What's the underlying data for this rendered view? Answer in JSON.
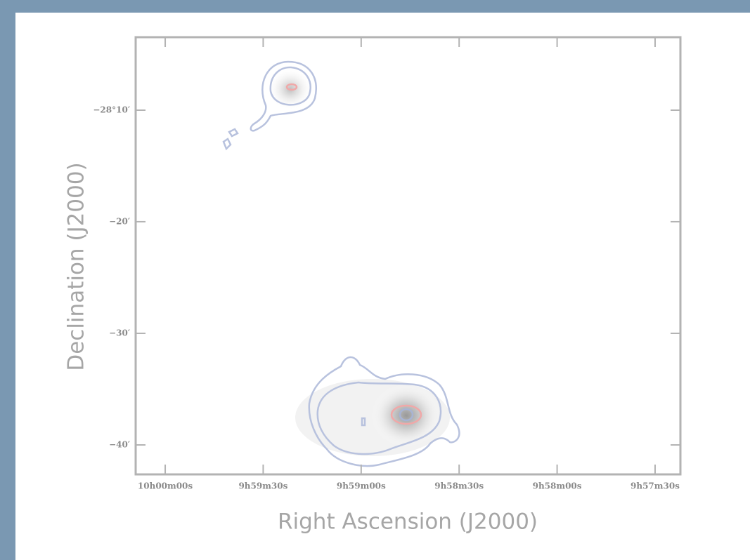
{
  "chart_data": {
    "type": "skymap",
    "xlabel": "Right Ascension (J2000)",
    "ylabel": "Declination (J2000)",
    "xlim": [
      150.0377,
      149.3427
    ],
    "ylim": [
      -28.7107,
      -28.0577
    ],
    "xticks": [
      {
        "value": 150.0,
        "label": "10h00m00s"
      },
      {
        "value": 149.875,
        "label": "9h59m30s"
      },
      {
        "value": 149.75,
        "label": "9h59m00s"
      },
      {
        "value": 149.625,
        "label": "9h58m30s"
      },
      {
        "value": 149.5,
        "label": "9h58m00s"
      },
      {
        "value": 149.375,
        "label": "9h57m30s"
      }
    ],
    "yticks": [
      {
        "value": -28.1667,
        "label": "−28°10′"
      },
      {
        "value": -28.3333,
        "label": "−20′"
      },
      {
        "value": -28.5,
        "label": "−30′"
      },
      {
        "value": -28.6667,
        "label": "−40′"
      }
    ]
  }
}
